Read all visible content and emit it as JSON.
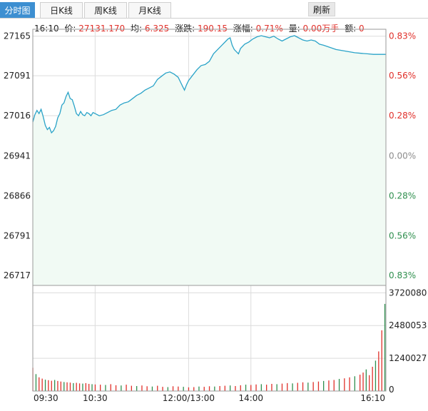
{
  "tabs": [
    {
      "label": "分时图",
      "active": true
    },
    {
      "label": "日K线",
      "active": false
    },
    {
      "label": "周K线",
      "active": false
    },
    {
      "label": "月K线",
      "active": false
    }
  ],
  "refresh_label": "刷新",
  "info": {
    "time": "16:10",
    "price_label": "价:",
    "price": "27131.170",
    "avg_label": "均:",
    "avg": "6.325",
    "change_label": "涨跌:",
    "change": "190.15",
    "pct_label": "涨幅:",
    "pct": "0.71%",
    "vol_label": "量:",
    "vol": "0.00万手",
    "amt_label": "额:",
    "amt": "0"
  },
  "colors": {
    "line": "#2aa3c8",
    "fill": "#f1faf4",
    "up": "#e0302a",
    "down": "#2f8f4e",
    "neutral": "#8c8c8c",
    "grid": "#dcdcdc",
    "border": "#9a9a9a"
  },
  "chart_data": {
    "type": "line",
    "price_axis": {
      "ticks": [
        "27165",
        "27091",
        "27016",
        "26941",
        "26866",
        "26791",
        "26717"
      ],
      "values": [
        27165,
        27091,
        27016,
        26941,
        26866,
        26791,
        26717
      ],
      "ylim": [
        26698,
        27178
      ]
    },
    "pct_axis": {
      "ticks": [
        "0.83%",
        "0.56%",
        "0.28%",
        "0.00%",
        "0.28%",
        "0.56%",
        "0.83%"
      ],
      "colors": [
        "up",
        "up",
        "up",
        "neutral",
        "down",
        "down",
        "down"
      ]
    },
    "volume_axis": {
      "ticks": [
        "3720080",
        "2480053",
        "1240027",
        "0"
      ],
      "values": [
        3720080,
        2480053,
        1240027,
        0
      ],
      "ylim": [
        0,
        4000000
      ]
    },
    "time_axis": {
      "ticks": [
        "09:30",
        "10:30",
        "12:00/13:00",
        "14:00",
        "16:10"
      ],
      "minutes": [
        0,
        60,
        150,
        210,
        340
      ],
      "total_minutes": 340
    },
    "price_series": [
      [
        0,
        27004
      ],
      [
        2,
        27018
      ],
      [
        4,
        27026
      ],
      [
        6,
        27020
      ],
      [
        8,
        27028
      ],
      [
        10,
        27014
      ],
      [
        12,
        26998
      ],
      [
        14,
        26990
      ],
      [
        16,
        26994
      ],
      [
        18,
        26984
      ],
      [
        20,
        26988
      ],
      [
        22,
        26996
      ],
      [
        24,
        27012
      ],
      [
        26,
        27020
      ],
      [
        28,
        27036
      ],
      [
        30,
        27040
      ],
      [
        32,
        27052
      ],
      [
        34,
        27060
      ],
      [
        36,
        27048
      ],
      [
        38,
        27046
      ],
      [
        40,
        27034
      ],
      [
        42,
        27020
      ],
      [
        44,
        27016
      ],
      [
        46,
        27024
      ],
      [
        48,
        27018
      ],
      [
        50,
        27016
      ],
      [
        52,
        27022
      ],
      [
        54,
        27020
      ],
      [
        56,
        27016
      ],
      [
        58,
        27022
      ],
      [
        60,
        27020
      ],
      [
        64,
        27016
      ],
      [
        68,
        27018
      ],
      [
        72,
        27022
      ],
      [
        76,
        27026
      ],
      [
        80,
        27028
      ],
      [
        84,
        27036
      ],
      [
        88,
        27040
      ],
      [
        92,
        27042
      ],
      [
        96,
        27048
      ],
      [
        100,
        27054
      ],
      [
        104,
        27058
      ],
      [
        108,
        27064
      ],
      [
        112,
        27068
      ],
      [
        116,
        27072
      ],
      [
        120,
        27084
      ],
      [
        124,
        27090
      ],
      [
        128,
        27096
      ],
      [
        132,
        27098
      ],
      [
        136,
        27094
      ],
      [
        140,
        27088
      ],
      [
        144,
        27072
      ],
      [
        146,
        27064
      ],
      [
        148,
        27074
      ],
      [
        150,
        27082
      ],
      [
        154,
        27092
      ],
      [
        158,
        27102
      ],
      [
        162,
        27110
      ],
      [
        166,
        27112
      ],
      [
        170,
        27118
      ],
      [
        174,
        27132
      ],
      [
        178,
        27140
      ],
      [
        182,
        27148
      ],
      [
        186,
        27156
      ],
      [
        188,
        27160
      ],
      [
        190,
        27162
      ],
      [
        192,
        27148
      ],
      [
        194,
        27140
      ],
      [
        198,
        27132
      ],
      [
        200,
        27142
      ],
      [
        204,
        27150
      ],
      [
        208,
        27154
      ],
      [
        212,
        27160
      ],
      [
        216,
        27164
      ],
      [
        220,
        27166
      ],
      [
        224,
        27164
      ],
      [
        228,
        27162
      ],
      [
        232,
        27165
      ],
      [
        236,
        27160
      ],
      [
        240,
        27156
      ],
      [
        244,
        27160
      ],
      [
        248,
        27164
      ],
      [
        252,
        27166
      ],
      [
        256,
        27162
      ],
      [
        260,
        27158
      ],
      [
        264,
        27156
      ],
      [
        268,
        27158
      ],
      [
        272,
        27156
      ],
      [
        276,
        27150
      ],
      [
        280,
        27148
      ],
      [
        286,
        27144
      ],
      [
        292,
        27140
      ],
      [
        298,
        27138
      ],
      [
        304,
        27136
      ],
      [
        310,
        27134
      ],
      [
        316,
        27133
      ],
      [
        322,
        27132
      ],
      [
        328,
        27131
      ],
      [
        334,
        27131
      ],
      [
        340,
        27131
      ]
    ],
    "volume_note": "approximate per-minute volumes",
    "volume_series": [
      [
        0,
        880000
      ],
      [
        3,
        640000
      ],
      [
        6,
        520000
      ],
      [
        9,
        470000
      ],
      [
        12,
        430000
      ],
      [
        15,
        410000
      ],
      [
        18,
        390000
      ],
      [
        21,
        420000
      ],
      [
        24,
        380000
      ],
      [
        27,
        360000
      ],
      [
        30,
        340000
      ],
      [
        33,
        330000
      ],
      [
        36,
        320000
      ],
      [
        39,
        300000
      ],
      [
        42,
        310000
      ],
      [
        45,
        290000
      ],
      [
        48,
        280000
      ],
      [
        51,
        300000
      ],
      [
        54,
        270000
      ],
      [
        57,
        260000
      ],
      [
        60,
        250000
      ],
      [
        65,
        240000
      ],
      [
        70,
        230000
      ],
      [
        75,
        260000
      ],
      [
        80,
        220000
      ],
      [
        85,
        210000
      ],
      [
        90,
        240000
      ],
      [
        95,
        200000
      ],
      [
        100,
        190000
      ],
      [
        105,
        210000
      ],
      [
        110,
        180000
      ],
      [
        115,
        170000
      ],
      [
        120,
        200000
      ],
      [
        125,
        160000
      ],
      [
        130,
        150000
      ],
      [
        135,
        180000
      ],
      [
        140,
        170000
      ],
      [
        145,
        160000
      ],
      [
        150,
        140000
      ],
      [
        155,
        150000
      ],
      [
        160,
        170000
      ],
      [
        165,
        160000
      ],
      [
        170,
        180000
      ],
      [
        175,
        170000
      ],
      [
        180,
        190000
      ],
      [
        185,
        200000
      ],
      [
        190,
        210000
      ],
      [
        195,
        190000
      ],
      [
        200,
        220000
      ],
      [
        205,
        240000
      ],
      [
        210,
        230000
      ],
      [
        215,
        250000
      ],
      [
        220,
        260000
      ],
      [
        225,
        240000
      ],
      [
        230,
        270000
      ],
      [
        235,
        260000
      ],
      [
        240,
        280000
      ],
      [
        245,
        300000
      ],
      [
        250,
        290000
      ],
      [
        255,
        310000
      ],
      [
        260,
        330000
      ],
      [
        265,
        320000
      ],
      [
        270,
        340000
      ],
      [
        275,
        360000
      ],
      [
        280,
        380000
      ],
      [
        285,
        400000
      ],
      [
        290,
        420000
      ],
      [
        295,
        460000
      ],
      [
        300,
        480000
      ],
      [
        305,
        520000
      ],
      [
        310,
        560000
      ],
      [
        315,
        620000
      ],
      [
        318,
        700000
      ],
      [
        321,
        820000
      ],
      [
        324,
        600000
      ],
      [
        327,
        920000
      ],
      [
        330,
        1150000
      ],
      [
        333,
        1500000
      ],
      [
        336,
        2300000
      ],
      [
        339,
        3300000
      ]
    ]
  }
}
